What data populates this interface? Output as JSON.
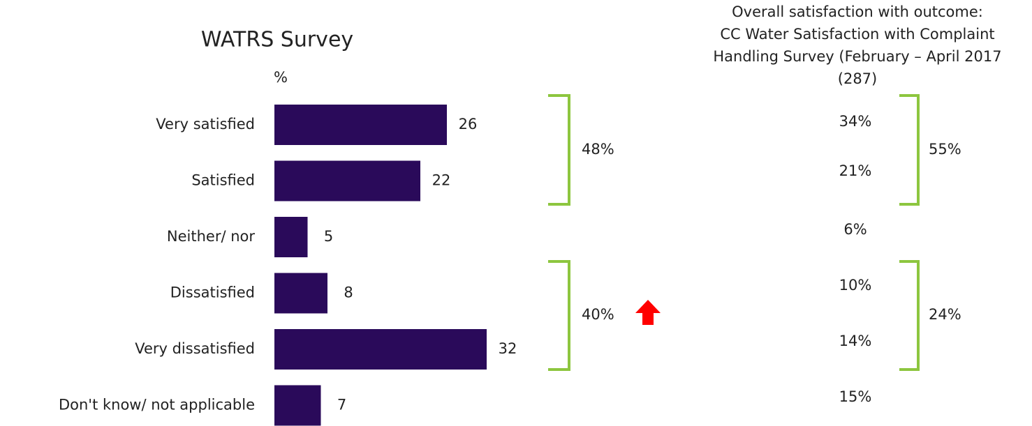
{
  "chart_data": {
    "type": "bar",
    "orientation": "horizontal",
    "title": "WATRS Survey",
    "unit_label": "%",
    "categories": [
      "Very satisfied",
      "Satisfied",
      "Neither/ nor",
      "Dissatisfied",
      "Very dissatisfied",
      "Don't know/ not applicable"
    ],
    "values": [
      26,
      22,
      5,
      8,
      32,
      7
    ],
    "color": "#2a0a5a",
    "xlim": [
      0,
      40
    ],
    "group_labels": [
      "48%",
      "40%"
    ],
    "comparison": {
      "title": [
        "Overall satisfaction with outcome:",
        "CC Water Satisfaction with Complaint",
        "Handling Survey (February – April 2017",
        "(287)"
      ],
      "values": [
        "34%",
        "21%",
        "6%",
        "10%",
        "14%",
        "15%"
      ],
      "group_labels": [
        "55%",
        "24%"
      ]
    }
  }
}
